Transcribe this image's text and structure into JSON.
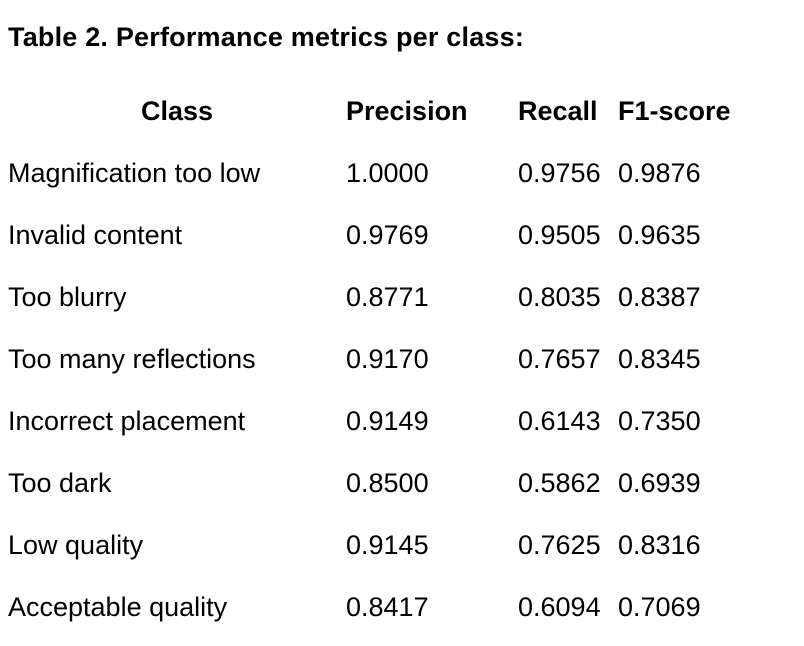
{
  "title": "Table 2. Performance metrics per class:",
  "table": {
    "headers": [
      "Class",
      "Precision",
      "Recall",
      "F1-score"
    ],
    "rows": [
      {
        "class": "Magnification too low",
        "precision": "1.0000",
        "recall": "0.9756",
        "f1": "0.9876"
      },
      {
        "class": "Invalid content",
        "precision": "0.9769",
        "recall": "0.9505",
        "f1": "0.9635"
      },
      {
        "class": "Too blurry",
        "precision": "0.8771",
        "recall": "0.8035",
        "f1": "0.8387"
      },
      {
        "class": "Too many reflections",
        "precision": "0.9170",
        "recall": "0.7657",
        "f1": "0.8345"
      },
      {
        "class": "Incorrect placement",
        "precision": "0.9149",
        "recall": "0.6143",
        "f1": "0.7350"
      },
      {
        "class": "Too dark",
        "precision": "0.8500",
        "recall": "0.5862",
        "f1": "0.6939"
      },
      {
        "class": "Low quality",
        "precision": "0.9145",
        "recall": "0.7625",
        "f1": "0.8316"
      },
      {
        "class": "Acceptable quality",
        "precision": "0.8417",
        "recall": "0.6094",
        "f1": "0.7069"
      }
    ]
  }
}
